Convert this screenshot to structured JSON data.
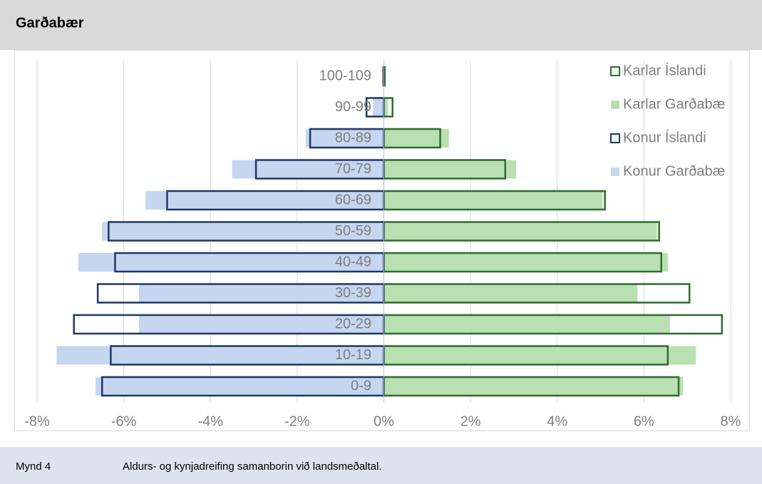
{
  "header": {
    "title": "Garðabær"
  },
  "chart_data": {
    "type": "pyramid",
    "categories": [
      "0-9",
      "10-19",
      "20-29",
      "30-39",
      "40-49",
      "50-59",
      "60-69",
      "70-79",
      "80-89",
      "90-99",
      "100-109"
    ],
    "series": [
      {
        "name": "Karlar Íslandi",
        "color": "#2e6b30",
        "style": "outline",
        "values": [
          6.8,
          6.55,
          7.8,
          7.05,
          6.4,
          6.35,
          5.1,
          2.8,
          1.3,
          0.2,
          0.02
        ]
      },
      {
        "name": "Karlar Garðabæ",
        "color": "#b9e0b0",
        "style": "filled",
        "values": [
          6.9,
          7.2,
          6.6,
          5.85,
          6.55,
          6.3,
          5.05,
          3.05,
          1.5,
          0.1,
          0.01
        ]
      },
      {
        "name": "Konur Íslandi",
        "color": "#1f3864",
        "style": "outline",
        "values": [
          -6.5,
          -6.3,
          -7.15,
          -6.6,
          -6.2,
          -6.35,
          -5.0,
          -2.95,
          -1.7,
          -0.4,
          -0.01
        ]
      },
      {
        "name": "Konur Garðabæ",
        "color": "#c5d6f0",
        "style": "filled",
        "values": [
          -6.65,
          -7.55,
          -5.65,
          -5.65,
          -7.05,
          -6.5,
          -5.5,
          -3.5,
          -1.8,
          -0.25,
          -0.01
        ]
      }
    ],
    "xlim": [
      -8,
      8
    ],
    "xticks": [
      {
        "value": -8,
        "label": "-8%"
      },
      {
        "value": -6,
        "label": "-6%"
      },
      {
        "value": -4,
        "label": "-4%"
      },
      {
        "value": -2,
        "label": "-2%"
      },
      {
        "value": 0,
        "label": "0%"
      },
      {
        "value": 2,
        "label": "2%"
      },
      {
        "value": 4,
        "label": "4%"
      },
      {
        "value": 6,
        "label": "6%"
      },
      {
        "value": 8,
        "label": "8%"
      }
    ],
    "grid": true,
    "legend": "top-right"
  },
  "caption": {
    "label": "Mynd 4",
    "text": "Aldurs- og kynjadreifing samanborin við landsmeðaltal."
  }
}
